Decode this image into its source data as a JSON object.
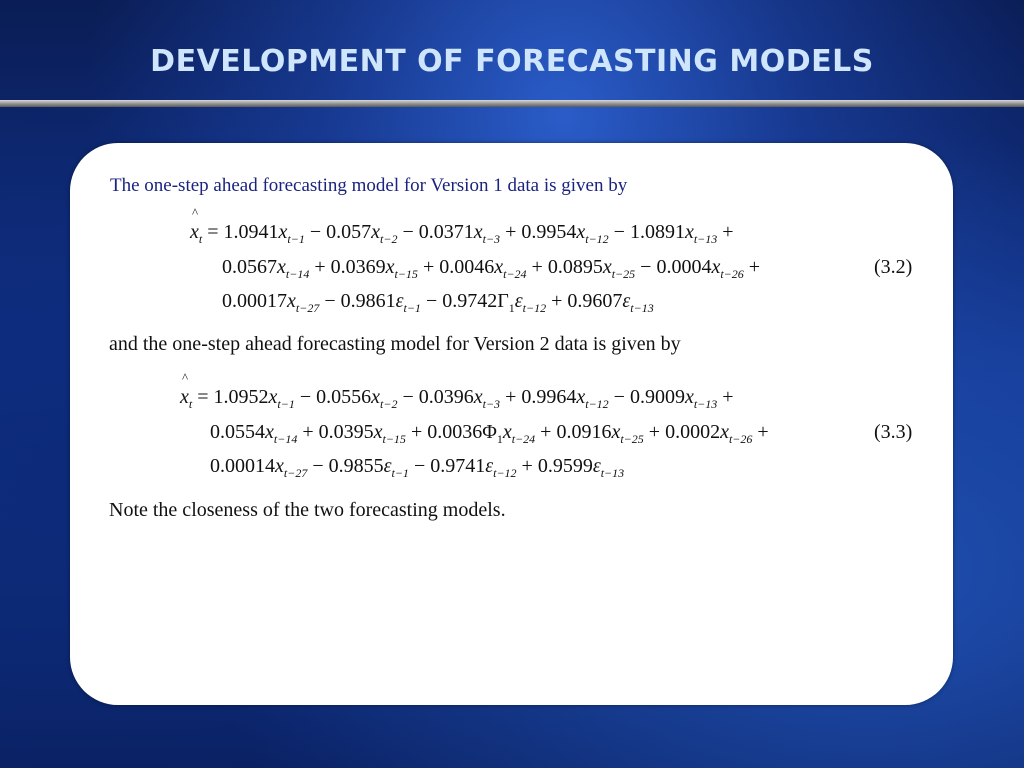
{
  "slide": {
    "title": "DEVELOPMENT OF FORECASTING MODELS",
    "intro_text": "The one-step ahead forecasting model for Version 1 data is given by",
    "middle_text": "and the one-step ahead forecasting model for Version 2 data is given by",
    "note_text": "Note the closeness of the two forecasting models.",
    "equation_1": {
      "number": "(3.2)",
      "lines": [
        "x̂_t = 1.0941 x_t−1 − 0.057 x_t−2 − 0.0371 x_t−3 + 0.9954 x_t−12 − 1.0891 x_t−13 +",
        "0.0567 x_t−14 + 0.0369 x_t−15 + 0.0046 x_t−24 + 0.0895 x_t−25 − 0.0004 x_t−26 +",
        "0.00017 x_t−27 − 0.9861 ε_t−1 − 0.9742 Γ_1 ε_t−12 + 0.9607 ε_t−13"
      ]
    },
    "equation_2": {
      "number": "(3.3)",
      "lines": [
        "x̂_t = 1.0952 x_t−1 − 0.0556 x_t−2 − 0.0396 x_t−3 + 0.9964 x_t−12 − 0.9009 x_t−13 +",
        "0.0554 x_t−14 + 0.0395 x_t−15 + 0.0036 Φ_1 x_t−24 + 0.0916 x_t−25 + 0.0002 x_t−26 +",
        "0.00014 x_t−27 − 0.9855 ε_t−1 − 0.9741 ε_t−12 + 0.9599 ε_t−13"
      ]
    },
    "colors": {
      "title": "#cfe5fb",
      "intro_text": "#1a237e",
      "panel": "#ffffff"
    }
  }
}
